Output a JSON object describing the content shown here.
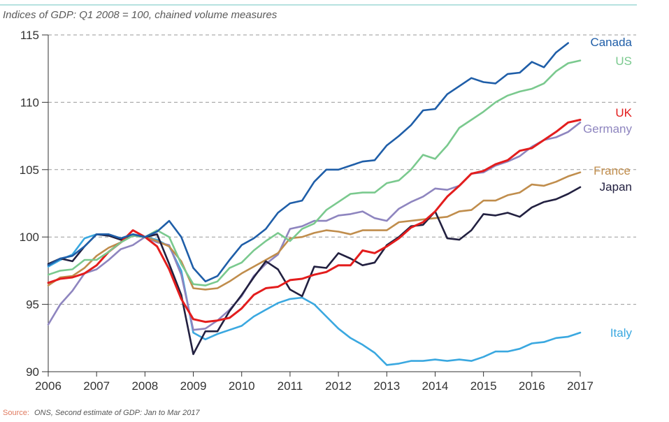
{
  "chart_data": {
    "type": "line",
    "title": "",
    "subtitle": "Indices of GDP: Q1 2008 = 100, chained volume measures",
    "xlabel": "",
    "ylabel": "",
    "xlim": [
      2006,
      2017
    ],
    "ylim": [
      90,
      115
    ],
    "x_ticks": [
      "2006",
      "2007",
      "2008",
      "2009",
      "2010",
      "2011",
      "2012",
      "2013",
      "2014",
      "2015",
      "2016",
      "2017"
    ],
    "y_ticks": [
      "90",
      "95",
      "100",
      "105",
      "110",
      "115"
    ],
    "grid": "horizontal dashed",
    "legend": "series labels at right end of lines",
    "x": [
      2006,
      2006.25,
      2006.5,
      2006.75,
      2007,
      2007.25,
      2007.5,
      2007.75,
      2008,
      2008.25,
      2008.5,
      2008.75,
      2009,
      2009.25,
      2009.5,
      2009.75,
      2010,
      2010.25,
      2010.5,
      2010.75,
      2011,
      2011.25,
      2011.5,
      2011.75,
      2012,
      2012.25,
      2012.5,
      2012.75,
      2013,
      2013.25,
      2013.5,
      2013.75,
      2014,
      2014.25,
      2014.5,
      2014.75,
      2015,
      2015.25,
      2015.5,
      2015.75,
      2016,
      2016.25,
      2016.5,
      2016.75,
      2017
    ],
    "series": [
      {
        "name": "Italy",
        "color": "#3aa8e0",
        "values": [
          97.8,
          98.3,
          98.7,
          99.9,
          100.2,
          100.1,
          99.9,
          100.2,
          100.0,
          99.8,
          99.3,
          97.5,
          92.9,
          92.4,
          92.8,
          93.1,
          93.4,
          94.1,
          94.6,
          95.1,
          95.4,
          95.5,
          95.0,
          94.1,
          93.2,
          92.5,
          92.0,
          91.4,
          90.5,
          90.6,
          90.8,
          90.8,
          90.9,
          90.8,
          90.9,
          90.8,
          91.1,
          91.5,
          91.5,
          91.7,
          92.1,
          92.2,
          92.5,
          92.6,
          92.9
        ]
      },
      {
        "name": "Germany",
        "color": "#8e85bf",
        "values": [
          93.5,
          95.0,
          96.0,
          97.3,
          97.6,
          98.3,
          99.1,
          99.4,
          100.0,
          99.6,
          99.4,
          97.2,
          93.1,
          93.2,
          93.8,
          94.6,
          95.6,
          97.1,
          98.0,
          98.7,
          100.6,
          100.8,
          101.2,
          101.2,
          101.6,
          101.7,
          101.9,
          101.4,
          101.2,
          102.1,
          102.6,
          103.0,
          103.6,
          103.5,
          103.8,
          104.7,
          104.8,
          105.3,
          105.6,
          106.0,
          106.7,
          107.2,
          107.4,
          107.8,
          108.5
        ]
      },
      {
        "name": "France",
        "color": "#c08d4c",
        "values": [
          96.4,
          97.0,
          97.1,
          97.7,
          98.6,
          99.2,
          99.6,
          100.1,
          100.0,
          99.7,
          99.3,
          98.2,
          96.2,
          96.1,
          96.2,
          96.7,
          97.3,
          97.8,
          98.3,
          98.8,
          99.9,
          100.0,
          100.3,
          100.5,
          100.4,
          100.2,
          100.5,
          100.5,
          100.5,
          101.1,
          101.2,
          101.3,
          101.4,
          101.5,
          101.9,
          102.0,
          102.7,
          102.7,
          103.1,
          103.3,
          103.9,
          103.8,
          104.1,
          104.5,
          104.8
        ]
      },
      {
        "name": "Japan",
        "color": "#222040",
        "values": [
          98.0,
          98.4,
          98.2,
          99.3,
          100.2,
          100.1,
          99.8,
          100.1,
          100.0,
          100.2,
          98.0,
          95.7,
          91.3,
          93.0,
          93.0,
          94.5,
          95.7,
          97.0,
          98.2,
          97.6,
          96.1,
          95.6,
          97.8,
          97.7,
          98.8,
          98.4,
          97.9,
          98.1,
          99.4,
          100.0,
          100.8,
          100.9,
          101.9,
          99.9,
          99.8,
          100.5,
          101.7,
          101.6,
          101.8,
          101.5,
          102.2,
          102.6,
          102.8,
          103.2,
          103.7
        ]
      },
      {
        "name": "UK",
        "color": "#e31d1d",
        "values": [
          96.6,
          96.9,
          97.0,
          97.3,
          97.9,
          98.9,
          99.6,
          100.5,
          100.0,
          99.3,
          97.6,
          95.4,
          93.9,
          93.7,
          93.8,
          94.0,
          94.7,
          95.7,
          96.2,
          96.3,
          96.8,
          96.9,
          97.2,
          97.4,
          97.9,
          97.9,
          99.0,
          98.8,
          99.3,
          99.9,
          100.7,
          101.1,
          101.9,
          103.0,
          103.8,
          104.7,
          104.9,
          105.4,
          105.7,
          106.4,
          106.6,
          107.2,
          107.8,
          108.5,
          108.7
        ]
      },
      {
        "name": "US",
        "color": "#7ac98e",
        "values": [
          97.2,
          97.5,
          97.6,
          98.3,
          98.3,
          98.9,
          99.6,
          100.1,
          100.0,
          100.5,
          100.0,
          98.0,
          96.5,
          96.4,
          96.7,
          97.7,
          98.1,
          99.0,
          99.7,
          100.3,
          99.7,
          100.6,
          101.0,
          102.0,
          102.6,
          103.2,
          103.3,
          103.3,
          104.0,
          104.2,
          105.0,
          106.1,
          105.8,
          106.8,
          108.1,
          108.7,
          109.3,
          110.0,
          110.5,
          110.8,
          111.0,
          111.4,
          112.3,
          112.9,
          113.1
        ]
      },
      {
        "name": "Canada",
        "color": "#1f5ea8",
        "values": [
          97.9,
          98.4,
          98.6,
          99.3,
          100.2,
          100.2,
          99.9,
          100.2,
          100.0,
          100.4,
          101.2,
          100.0,
          97.7,
          96.7,
          97.1,
          98.3,
          99.4,
          99.9,
          100.6,
          101.8,
          102.5,
          102.7,
          104.1,
          105.0,
          105.0,
          105.3,
          105.6,
          105.7,
          106.8,
          107.5,
          108.3,
          109.4,
          109.5,
          110.6,
          111.2,
          111.8,
          111.5,
          111.4,
          112.1,
          112.2,
          113.0,
          112.6,
          113.7,
          114.4,
          null
        ]
      }
    ],
    "source_prefix": "Source:",
    "source_text": "ONS, Second estimate of GDP: Jan to Mar 2017"
  }
}
